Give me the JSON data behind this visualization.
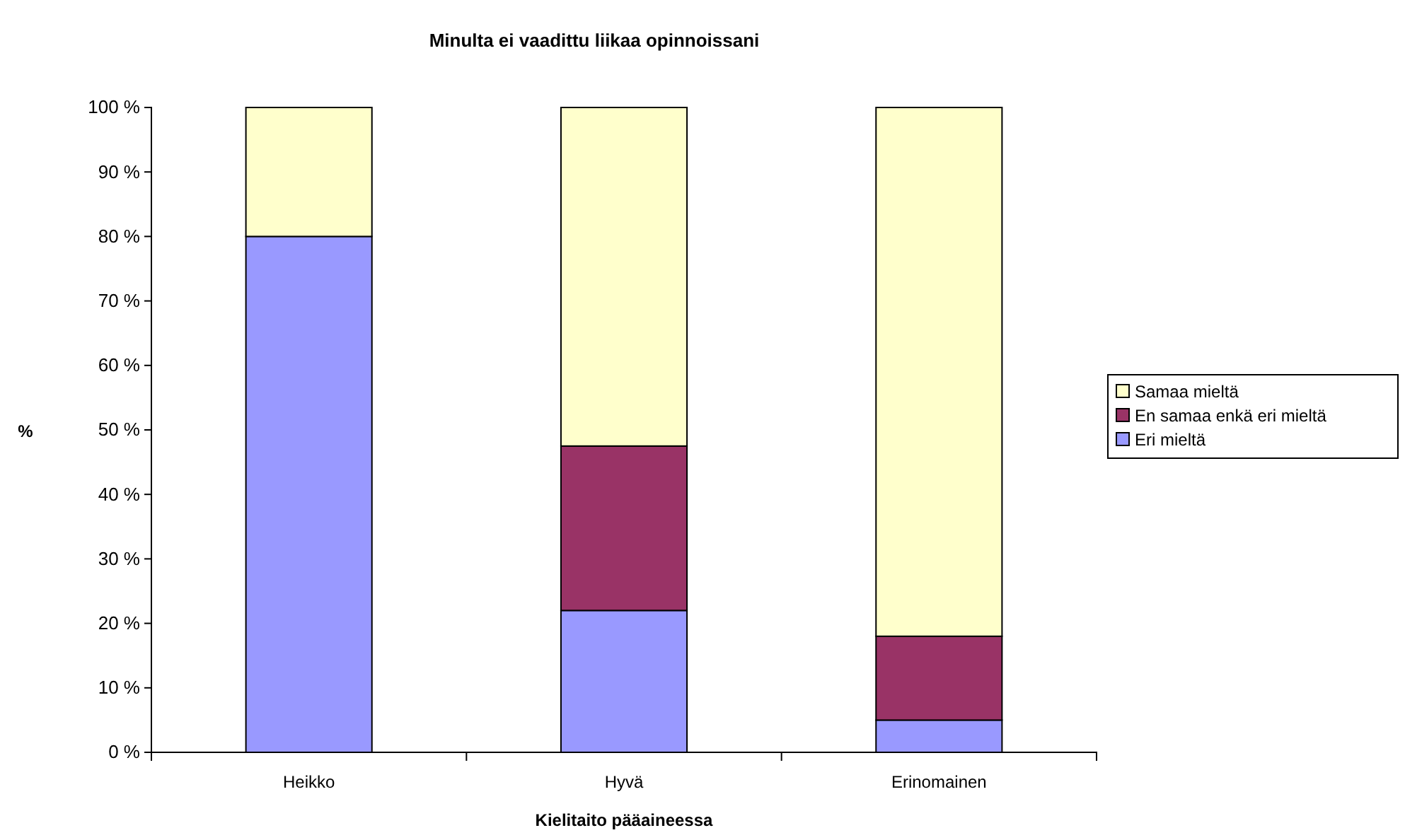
{
  "chart_data": {
    "type": "bar",
    "title": "Minulta ei vaadittu liikaa opinnoissani",
    "xlabel": "Kielitaito pääaineessa",
    "ylabel": "%",
    "categories": [
      "Heikko",
      "Hyvä",
      "Erinomainen"
    ],
    "stacked": true,
    "legend": "right",
    "ylim": [
      0,
      100
    ],
    "yticks": [
      {
        "value": 0,
        "label": "0 %"
      },
      {
        "value": 10,
        "label": "10 %"
      },
      {
        "value": 20,
        "label": "20 %"
      },
      {
        "value": 30,
        "label": "30 %"
      },
      {
        "value": 40,
        "label": "40 %"
      },
      {
        "value": 50,
        "label": "50 %"
      },
      {
        "value": 60,
        "label": "60 %"
      },
      {
        "value": 70,
        "label": "70 %"
      },
      {
        "value": 80,
        "label": "80 %"
      },
      {
        "value": 90,
        "label": "90 %"
      },
      {
        "value": 100,
        "label": "100 %"
      }
    ],
    "series": [
      {
        "name": "Eri mieltä",
        "color": "#9999ff",
        "values": [
          80,
          22,
          5
        ]
      },
      {
        "name": "En samaa enkä eri mieltä",
        "color": "#993366",
        "values": [
          0,
          25.5,
          13
        ]
      },
      {
        "name": "Samaa mieltä",
        "color": "#ffffcc",
        "values": [
          20,
          52.5,
          82
        ]
      }
    ]
  }
}
